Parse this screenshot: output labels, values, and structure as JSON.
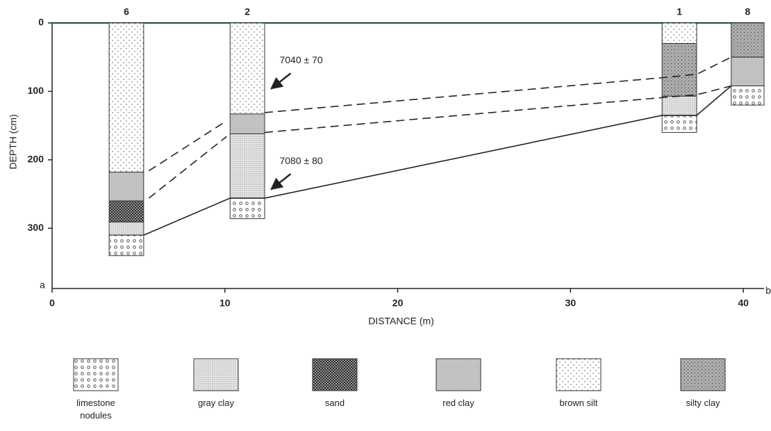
{
  "chart_data": {
    "type": "stratigraphic-section",
    "xlabel": "DISTANCE (m)",
    "ylabel": "DEPTH (cm)",
    "xlim": [
      0,
      41.2
    ],
    "ylim": [
      0,
      388
    ],
    "xticks": [
      0,
      10,
      20,
      30,
      40
    ],
    "yticks": [
      0,
      100,
      200,
      300
    ],
    "corner_labels": [
      "a",
      "b"
    ],
    "legend": [
      "limestone nodules",
      "gray clay",
      "sand",
      "red clay",
      "brown silt",
      "silty clay"
    ],
    "columns": [
      {
        "label": "6",
        "x": [
          3.3,
          5.3
        ],
        "layers": [
          {
            "material": "brown silt",
            "top": 0,
            "bottom": 218
          },
          {
            "material": "red clay",
            "top": 218,
            "bottom": 260
          },
          {
            "material": "sand",
            "top": 260,
            "bottom": 291
          },
          {
            "material": "gray clay",
            "top": 291,
            "bottom": 310
          },
          {
            "material": "limestone nodules",
            "top": 310,
            "bottom": 340
          }
        ]
      },
      {
        "label": "2",
        "x": [
          10.3,
          12.3
        ],
        "layers": [
          {
            "material": "brown silt",
            "top": 0,
            "bottom": 133
          },
          {
            "material": "red clay",
            "top": 133,
            "bottom": 162
          },
          {
            "material": "gray clay",
            "top": 162,
            "bottom": 256
          },
          {
            "material": "limestone nodules",
            "top": 256,
            "bottom": 286
          }
        ]
      },
      {
        "label": "1",
        "x": [
          35.3,
          37.3
        ],
        "layers": [
          {
            "material": "brown silt",
            "top": 0,
            "bottom": 30
          },
          {
            "material": "silty clay",
            "top": 30,
            "bottom": 107
          },
          {
            "material": "gray clay",
            "top": 107,
            "bottom": 135
          },
          {
            "material": "limestone nodules",
            "top": 135,
            "bottom": 160
          }
        ]
      },
      {
        "label": "8",
        "x": [
          39.3,
          41.2
        ],
        "layers": [
          {
            "material": "silty clay",
            "top": 0,
            "bottom": 50
          },
          {
            "material": "red clay",
            "top": 50,
            "bottom": 92
          },
          {
            "material": "limestone nodules",
            "top": 92,
            "bottom": 120
          }
        ]
      }
    ],
    "correlations": [
      {
        "style": "dashed",
        "x": [
          5.6,
          10.1
        ],
        "depth": [
          216,
          143
        ]
      },
      {
        "style": "dashed",
        "x": [
          5.6,
          10.1
        ],
        "depth": [
          256,
          166
        ]
      },
      {
        "style": "dashed",
        "x": [
          12.3,
          35.3,
          37.3,
          39.3
        ],
        "depth": [
          131,
          80,
          75,
          50
        ]
      },
      {
        "style": "dashed",
        "x": [
          12.3,
          35.3,
          37.3,
          39.3
        ],
        "depth": [
          160,
          109,
          105,
          92
        ]
      },
      {
        "style": "solid",
        "x": [
          5.3,
          10.3,
          12.3,
          35.3,
          37.3,
          39.3
        ],
        "depth": [
          310,
          256,
          256,
          135,
          135,
          92
        ]
      }
    ],
    "annotations": [
      {
        "text": "7040 ± 70",
        "target": [
          12.6,
          98
        ]
      },
      {
        "text": "7080 ± 80",
        "target": [
          12.6,
          245
        ]
      }
    ]
  }
}
